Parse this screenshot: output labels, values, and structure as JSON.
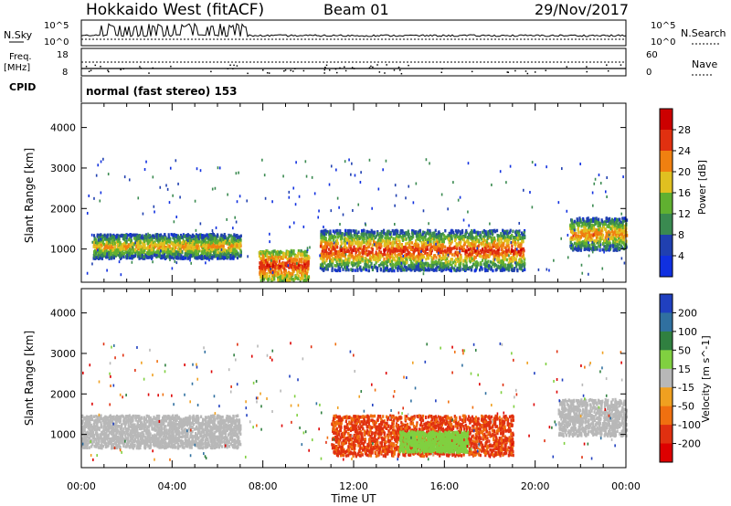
{
  "header": {
    "station": "Hokkaido West (fitACF)",
    "beam": "Beam 01",
    "date": "29/Nov/2017"
  },
  "status_panels": {
    "nsky_label": "N.Sky",
    "nsearch_label": "N.Search",
    "noise_ticks": [
      "10^5",
      "10^0"
    ],
    "freq_label": "Freq.",
    "freq_unit": "[MHz]",
    "freq_ticks": [
      "18",
      "8"
    ],
    "nave_label": "Nave",
    "nave_ticks": [
      "60",
      "0"
    ],
    "cpid_label": "CPID",
    "cpid_value": "normal (fast stereo) 153"
  },
  "chart_data": [
    {
      "type": "heatmap",
      "title": "",
      "xlabel": "Time UT",
      "ylabel": "Slant Range [km]",
      "xlim": [
        0,
        24
      ],
      "ylim": [
        180,
        4600
      ],
      "x_ticks": [
        "00:00",
        "04:00",
        "08:00",
        "12:00",
        "16:00",
        "20:00",
        "00:00"
      ],
      "y_ticks": [
        "1000",
        "2000",
        "3000",
        "4000"
      ],
      "colorbar_label": "Power [dB]",
      "colorbar_ticks": [
        "4",
        "8",
        "12",
        "16",
        "20",
        "24",
        "28"
      ],
      "colorbar_colors": [
        "#1030e0",
        "#2040b0",
        "#3a8a50",
        "#60b030",
        "#e0c020",
        "#f08010",
        "#e03010",
        "#cc0000"
      ],
      "features": [
        {
          "time_range": [
            0.5,
            7.0
          ],
          "range_km": [
            800,
            1400
          ],
          "power_db": [
            8,
            24
          ]
        },
        {
          "time_range": [
            7.8,
            10.0
          ],
          "range_km": [
            250,
            1000
          ],
          "power_db": [
            16,
            30
          ]
        },
        {
          "time_range": [
            10.5,
            19.5
          ],
          "range_km": [
            500,
            1500
          ],
          "power_db": [
            8,
            30
          ]
        },
        {
          "time_range": [
            21.5,
            24.0
          ],
          "range_km": [
            1000,
            1800
          ],
          "power_db": [
            8,
            26
          ]
        }
      ]
    },
    {
      "type": "heatmap",
      "title": "",
      "xlabel": "Time UT",
      "ylabel": "Slant Range [km]",
      "xlim": [
        0,
        24
      ],
      "ylim": [
        180,
        4600
      ],
      "x_ticks": [
        "00:00",
        "04:00",
        "08:00",
        "12:00",
        "16:00",
        "20:00",
        "00:00"
      ],
      "y_ticks": [
        "1000",
        "2000",
        "3000",
        "4000"
      ],
      "colorbar_label": "Velocity [m s^-1]",
      "colorbar_ticks": [
        "200",
        "100",
        "50",
        "15",
        "-15",
        "-50",
        "-100",
        "-200"
      ],
      "colorbar_colors": [
        "#2040c0",
        "#3070a0",
        "#308040",
        "#80d040",
        "#b8b8b8",
        "#f0a020",
        "#f07010",
        "#e03010",
        "#dd0000"
      ],
      "features": [
        {
          "time_range": [
            0.0,
            7.0
          ],
          "range_km": [
            700,
            1500
          ],
          "velocity_ms": [
            -15,
            15
          ]
        },
        {
          "time_range": [
            11.0,
            19.0
          ],
          "range_km": [
            500,
            1500
          ],
          "velocity_ms": [
            -200,
            -50
          ]
        },
        {
          "time_range": [
            14.0,
            17.0
          ],
          "range_km": [
            600,
            1100
          ],
          "velocity_ms": [
            15,
            50
          ]
        },
        {
          "time_range": [
            21.0,
            24.0
          ],
          "range_km": [
            1000,
            1900
          ],
          "velocity_ms": [
            -15,
            15
          ]
        }
      ]
    }
  ]
}
